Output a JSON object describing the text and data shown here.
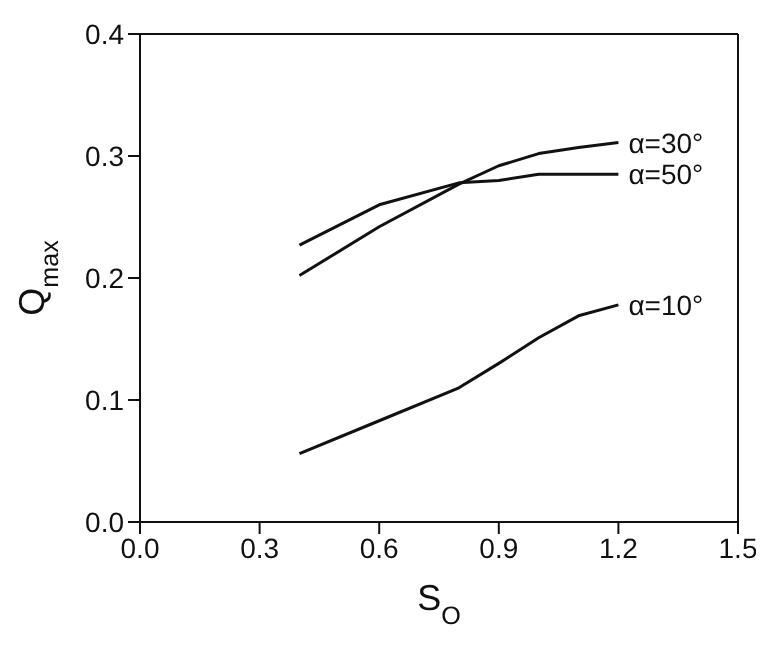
{
  "chart_data": {
    "type": "line",
    "xlabel": "S$_{O}$",
    "ylabel": "Q$_{max}$",
    "x": [
      0.4,
      0.6,
      0.8,
      0.9,
      1.0,
      1.1,
      1.2
    ],
    "series": [
      {
        "name": "α=30°",
        "color": "#111111",
        "values": [
          0.202,
          0.242,
          0.277,
          0.292,
          0.302,
          0.307,
          0.311
        ]
      },
      {
        "name": "α=50°",
        "color": "#111111",
        "values": [
          0.227,
          0.26,
          0.278,
          0.28,
          0.285,
          0.285,
          0.285
        ]
      },
      {
        "name": "α=10°",
        "color": "#111111",
        "values": [
          0.056,
          0.083,
          0.11,
          0.13,
          0.151,
          0.169,
          0.178
        ]
      }
    ],
    "xlim": [
      0,
      1.5
    ],
    "xticks": [
      {
        "value": 0,
        "label": "0.0"
      },
      0.3,
      0.6,
      0.9,
      1.2,
      1.5
    ],
    "ylim": [
      0,
      0.4
    ],
    "yticks": [
      {
        "value": 0,
        "label": "0.0"
      },
      0.1,
      0.2,
      0.3,
      0.4
    ],
    "grid": false,
    "marker": "none",
    "line_style": "solid"
  }
}
